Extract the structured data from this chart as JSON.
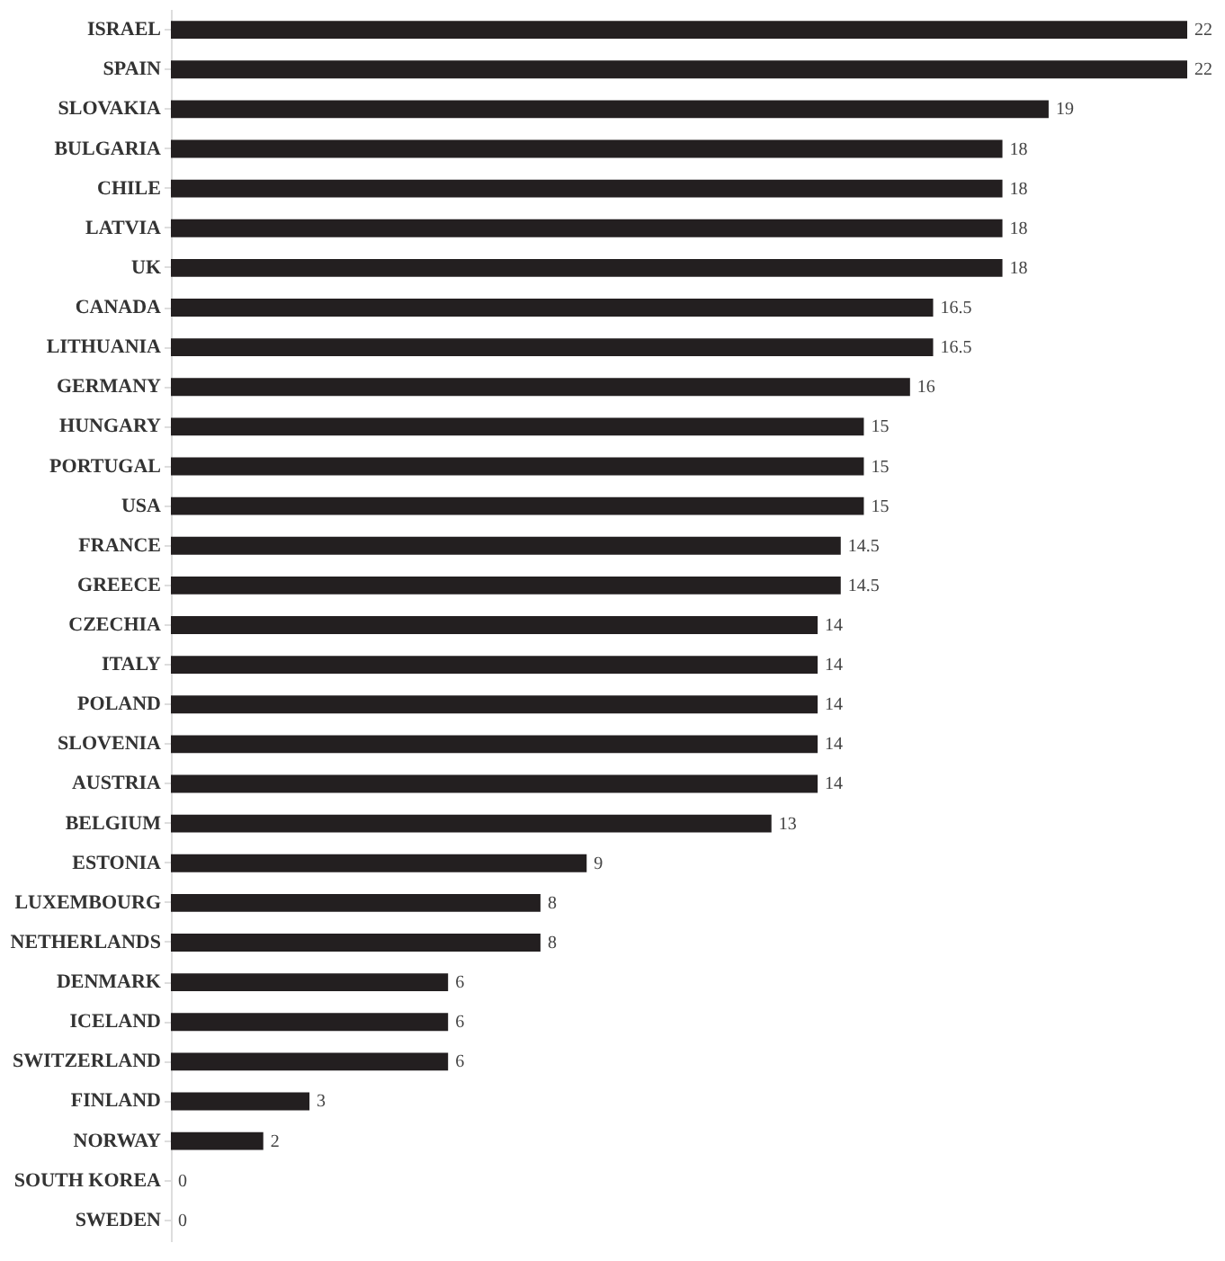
{
  "chart_data": {
    "type": "bar",
    "orientation": "horizontal",
    "categories": [
      "ISRAEL",
      "SPAIN",
      "SLOVAKIA",
      "BULGARIA",
      "CHILE",
      "LATVIA",
      "UK",
      "CANADA",
      "LITHUANIA",
      "GERMANY",
      "HUNGARY",
      "PORTUGAL",
      "USA",
      "FRANCE",
      "GREECE",
      "CZECHIA",
      "ITALY",
      "POLAND",
      "SLOVENIA",
      "AUSTRIA",
      "BELGIUM",
      "ESTONIA",
      "LUXEMBOURG",
      "NETHERLANDS",
      "DENMARK",
      "ICELAND",
      "SWITZERLAND",
      "FINLAND",
      "NORWAY",
      "SOUTH KOREA",
      "SWEDEN"
    ],
    "values": [
      22,
      22,
      19,
      18,
      18,
      18,
      18,
      16.5,
      16.5,
      16,
      15,
      15,
      15,
      14.5,
      14.5,
      14,
      14,
      14,
      14,
      14,
      13,
      9,
      8,
      8,
      6,
      6,
      6,
      3,
      2,
      0,
      0
    ],
    "color": "#231f20",
    "xlim": [
      0,
      22
    ],
    "tick_labels": "y",
    "data_labels": true
  }
}
